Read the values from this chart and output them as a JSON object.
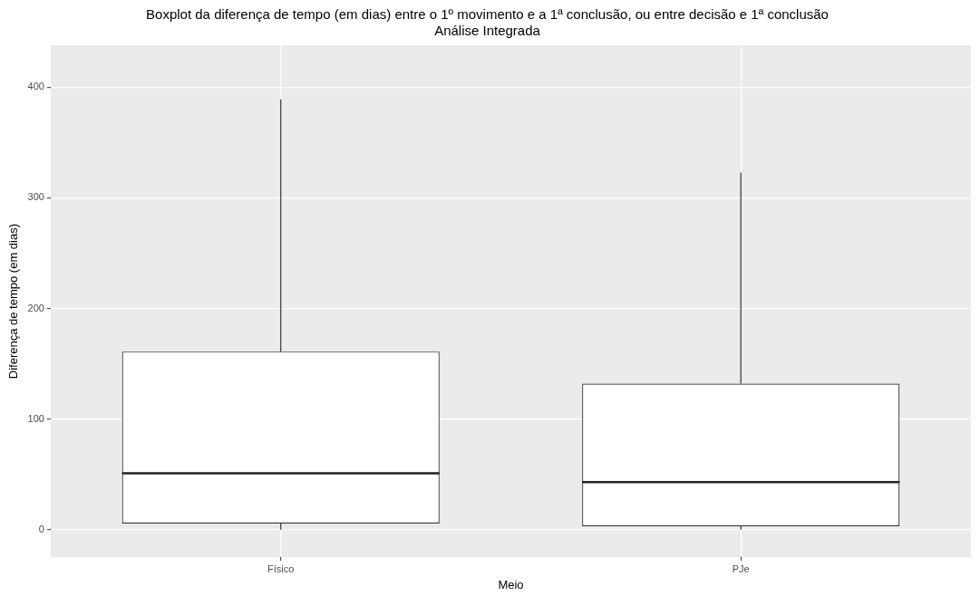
{
  "chart_data": {
    "type": "box",
    "title": "Boxplot da diferença de tempo (em dias) entre o 1º movimento e a 1ª conclusão, ou entre decisão e 1ª conclusão",
    "subtitle": "Análise Integrada",
    "xlabel": "Meio",
    "ylabel": "Diferença de tempo (em dias)",
    "categories": [
      "Físico",
      "PJe"
    ],
    "boxes": [
      {
        "low": 0,
        "q1": 5.5,
        "median": 51,
        "q3": 161,
        "high": 389
      },
      {
        "low": 0,
        "q1": 3,
        "median": 43,
        "q3": 132,
        "high": 323
      }
    ],
    "ylim": [
      -25,
      438
    ],
    "yticks": [
      0,
      100,
      200,
      300,
      400
    ],
    "grid": true
  }
}
